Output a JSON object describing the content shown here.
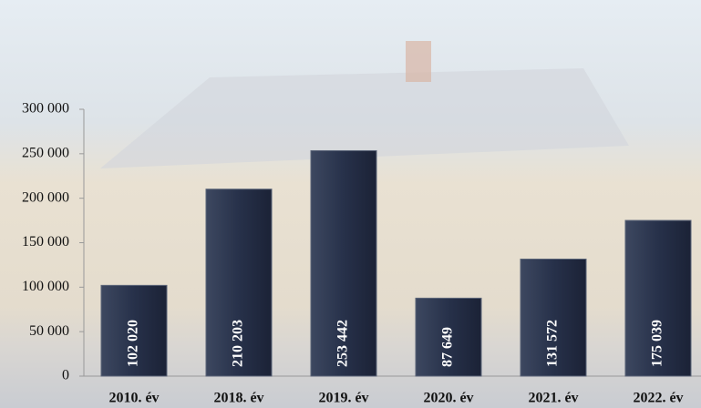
{
  "chart_data": {
    "type": "bar",
    "categories": [
      "2010. év",
      "2018. év",
      "2019. év",
      "2020. év",
      "2021. év",
      "2022. év"
    ],
    "values": [
      102020,
      210203,
      253442,
      87649,
      131572,
      175039
    ],
    "value_labels": [
      "102 020",
      "210 203",
      "253 442",
      "87 649",
      "131 572",
      "175 039"
    ],
    "color": "#27314a",
    "ylim": [
      0,
      300000
    ],
    "yticks": [
      0,
      {
        "value": 50000,
        "label": "50 000"
      },
      {
        "value": 100000,
        "label": "100 000"
      },
      {
        "value": 150000,
        "label": "150 000"
      },
      {
        "value": 200000,
        "label": "200 000"
      },
      {
        "value": 250000,
        "label": "250 000"
      },
      {
        "value": 300000,
        "label": "300 000"
      }
    ]
  }
}
